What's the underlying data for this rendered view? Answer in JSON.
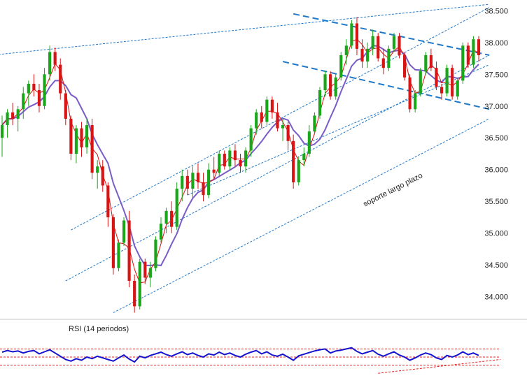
{
  "colors": {
    "bull": "#19a619",
    "bear": "#d81414",
    "sma_fast": "#e01010",
    "sma_slow": "#7a5cc8",
    "trendline": "#1f78c8",
    "rsi_line": "#1414d0",
    "rsi_band": "#e02020",
    "text": "#222222"
  },
  "chart_data": [
    {
      "type": "candlestick",
      "title": "",
      "xlabel": "",
      "ylabel": "",
      "ylim": [
        33700,
        38580
      ],
      "yticks": [
        34000,
        34500,
        35000,
        35500,
        36000,
        36500,
        37000,
        37500,
        38000,
        38500
      ],
      "ytick_labels": [
        "34.000",
        "34.500",
        "35.000",
        "35.500",
        "36.000",
        "36.500",
        "37.000",
        "37.500",
        "38.000",
        "38.500"
      ],
      "grid": false,
      "annotations": [
        {
          "text": "soporte largo plazo",
          "x": 74,
          "y": 35650
        }
      ],
      "candles": [
        [
          36500,
          36850,
          36200,
          36700
        ],
        [
          36700,
          36950,
          36500,
          36900
        ],
        [
          36900,
          37050,
          36700,
          36800
        ],
        [
          36800,
          37000,
          36600,
          36950
        ],
        [
          36950,
          37300,
          36800,
          37200
        ],
        [
          37200,
          37400,
          37000,
          37350
        ],
        [
          37350,
          37500,
          37150,
          37250
        ],
        [
          37250,
          37350,
          36900,
          37000
        ],
        [
          37000,
          37600,
          36950,
          37500
        ],
        [
          37500,
          37950,
          37400,
          37850
        ],
        [
          37850,
          37920,
          37550,
          37650
        ],
        [
          37650,
          37750,
          37100,
          37200
        ],
        [
          37200,
          37250,
          36700,
          36800
        ],
        [
          36800,
          36850,
          36150,
          36250
        ],
        [
          36250,
          36700,
          36100,
          36650
        ],
        [
          36650,
          36750,
          36200,
          36350
        ],
        [
          36350,
          36800,
          36250,
          36700
        ],
        [
          36700,
          36800,
          35850,
          35950
        ],
        [
          35950,
          36150,
          35700,
          36050
        ],
        [
          36050,
          36150,
          35650,
          35750
        ],
        [
          35750,
          35800,
          35100,
          35250
        ],
        [
          35250,
          35300,
          34350,
          34450
        ],
        [
          34450,
          34900,
          34400,
          34850
        ],
        [
          34850,
          35250,
          34800,
          35200
        ],
        [
          35200,
          35350,
          34150,
          34250
        ],
        [
          34250,
          34350,
          33750,
          33850
        ],
        [
          33850,
          34600,
          33800,
          34550
        ],
        [
          34550,
          34600,
          34200,
          34300
        ],
        [
          34300,
          34550,
          34150,
          34450
        ],
        [
          34450,
          34950,
          34400,
          34900
        ],
        [
          34900,
          35250,
          34850,
          35150
        ],
        [
          35150,
          35400,
          35000,
          35350
        ],
        [
          35350,
          35500,
          35000,
          35100
        ],
        [
          35100,
          35800,
          35050,
          35700
        ],
        [
          35700,
          36000,
          35500,
          35900
        ],
        [
          35900,
          36000,
          35600,
          35700
        ],
        [
          35700,
          36050,
          35550,
          35950
        ],
        [
          35950,
          36100,
          35700,
          35800
        ],
        [
          35800,
          35950,
          35500,
          35600
        ],
        [
          35600,
          36100,
          35550,
          36000
        ],
        [
          36000,
          36200,
          35850,
          35950
        ],
        [
          35950,
          36300,
          35900,
          36250
        ],
        [
          36250,
          36300,
          36000,
          36050
        ],
        [
          36050,
          36350,
          36000,
          36300
        ],
        [
          36300,
          36400,
          36050,
          36150
        ],
        [
          36150,
          36250,
          35950,
          36050
        ],
        [
          36050,
          36350,
          35950,
          36300
        ],
        [
          36300,
          36700,
          36200,
          36650
        ],
        [
          36650,
          36950,
          36550,
          36900
        ],
        [
          36900,
          37000,
          36650,
          36750
        ],
        [
          36750,
          37150,
          36700,
          37100
        ],
        [
          37100,
          37150,
          36800,
          36900
        ],
        [
          36900,
          37050,
          36600,
          36650
        ],
        [
          36650,
          36800,
          36450,
          36700
        ],
        [
          36700,
          36750,
          36300,
          36450
        ],
        [
          36450,
          36550,
          35700,
          35800
        ],
        [
          35800,
          36200,
          35750,
          36150
        ],
        [
          36150,
          36350,
          36050,
          36250
        ],
        [
          36250,
          36700,
          36200,
          36600
        ],
        [
          36600,
          36900,
          36550,
          36850
        ],
        [
          36850,
          37300,
          36800,
          37250
        ],
        [
          37250,
          37550,
          37150,
          37500
        ],
        [
          37500,
          37550,
          37100,
          37150
        ],
        [
          37150,
          37500,
          37100,
          37450
        ],
        [
          37450,
          37850,
          37400,
          37800
        ],
        [
          37800,
          38050,
          37650,
          37950
        ],
        [
          37950,
          38350,
          37900,
          38300
        ],
        [
          38300,
          38400,
          37800,
          37900
        ],
        [
          37900,
          38050,
          37600,
          37700
        ],
        [
          37700,
          38000,
          37600,
          37900
        ],
        [
          37900,
          38200,
          37800,
          38100
        ],
        [
          38100,
          38150,
          37700,
          37750
        ],
        [
          37750,
          37900,
          37500,
          37600
        ],
        [
          37600,
          37950,
          37550,
          37900
        ],
        [
          37900,
          38150,
          37850,
          38100
        ],
        [
          38100,
          38150,
          37750,
          37800
        ],
        [
          37800,
          37850,
          37400,
          37450
        ],
        [
          37450,
          37500,
          36900,
          36950
        ],
        [
          36950,
          37250,
          36900,
          37200
        ],
        [
          37200,
          37600,
          37150,
          37550
        ],
        [
          37550,
          37850,
          37500,
          37800
        ],
        [
          37800,
          37900,
          37550,
          37600
        ],
        [
          37600,
          37700,
          37250,
          37300
        ],
        [
          37300,
          37350,
          37100,
          37200
        ],
        [
          37200,
          37650,
          37150,
          37600
        ],
        [
          37600,
          37650,
          37100,
          37150
        ],
        [
          37150,
          37450,
          37100,
          37400
        ],
        [
          37400,
          38000,
          37350,
          37950
        ],
        [
          37950,
          38000,
          37600,
          37650
        ],
        [
          37650,
          38100,
          37600,
          38050
        ],
        [
          38050,
          38100,
          37700,
          37800
        ]
      ]
    },
    {
      "type": "line",
      "title": "RSI (14 periodos)",
      "xlabel": "",
      "ylabel": "",
      "ylim": [
        0,
        100
      ],
      "bands": [
        70,
        50,
        30
      ],
      "series": [
        {
          "name": "RSI (14 periodos)",
          "values": [
            62,
            66,
            63,
            65,
            60,
            64,
            66,
            58,
            63,
            68,
            60,
            52,
            44,
            40,
            46,
            42,
            50,
            46,
            52,
            48,
            44,
            40,
            48,
            55,
            45,
            38,
            52,
            48,
            54,
            58,
            62,
            56,
            52,
            58,
            63,
            56,
            60,
            54,
            50,
            58,
            55,
            62,
            56,
            60,
            54,
            50,
            57,
            62,
            66,
            58,
            63,
            55,
            52,
            57,
            50,
            42,
            53,
            57,
            61,
            65,
            68,
            70,
            60,
            65,
            67,
            70,
            73,
            64,
            58,
            62,
            66,
            57,
            52,
            58,
            63,
            55,
            50,
            42,
            48,
            55,
            60,
            56,
            48,
            44,
            54,
            50,
            55,
            63,
            56,
            60,
            54
          ]
        }
      ]
    }
  ]
}
